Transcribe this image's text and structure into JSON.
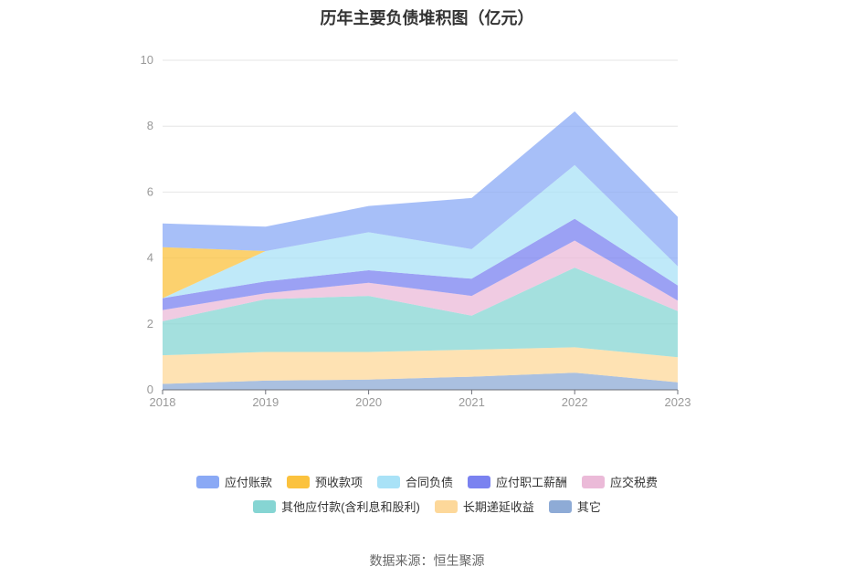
{
  "chart_data": {
    "type": "area",
    "stacked": true,
    "title": "历年主要负债堆积图（亿元）",
    "x": [
      "2018",
      "2019",
      "2020",
      "2021",
      "2022",
      "2023"
    ],
    "ylim": [
      0,
      10
    ],
    "yticks": [
      "0",
      "2",
      "4",
      "6",
      "8",
      "10"
    ],
    "grid": true,
    "legend_position": "bottom",
    "series": [
      {
        "name": "其它",
        "color": "#8eabd6",
        "values": [
          0.18,
          0.28,
          0.31,
          0.4,
          0.52,
          0.23
        ]
      },
      {
        "name": "长期递延收益",
        "color": "#fdd89a",
        "values": [
          0.87,
          0.87,
          0.84,
          0.82,
          0.77,
          0.76
        ]
      },
      {
        "name": "其他应付款(含利息和股利)",
        "color": "#86d5d3",
        "values": [
          1.03,
          1.6,
          1.7,
          1.03,
          2.42,
          1.4
        ]
      },
      {
        "name": "应交税费",
        "color": "#ebbad8",
        "values": [
          0.34,
          0.18,
          0.4,
          0.6,
          0.82,
          0.32
        ]
      },
      {
        "name": "应付职工薪酬",
        "color": "#7a82f0",
        "values": [
          0.36,
          0.36,
          0.38,
          0.52,
          0.66,
          0.46
        ]
      },
      {
        "name": "合同负债",
        "color": "#a9e2f7",
        "values": [
          0.0,
          0.92,
          1.15,
          0.9,
          1.63,
          0.58
        ]
      },
      {
        "name": "预收款项",
        "color": "#fbc23e",
        "values": [
          1.55,
          0.0,
          0.0,
          0.0,
          0.0,
          0.0
        ]
      },
      {
        "name": "应付账款",
        "color": "#8aa9f5",
        "values": [
          0.72,
          0.74,
          0.8,
          1.55,
          1.63,
          1.5
        ]
      }
    ],
    "legend_order": [
      "应付账款",
      "预收款项",
      "合同负债",
      "应付职工薪酬",
      "应交税费",
      "其他应付款(含利息和股利)",
      "长期递延收益",
      "其它"
    ]
  },
  "source_label": "数据来源：恒生聚源"
}
